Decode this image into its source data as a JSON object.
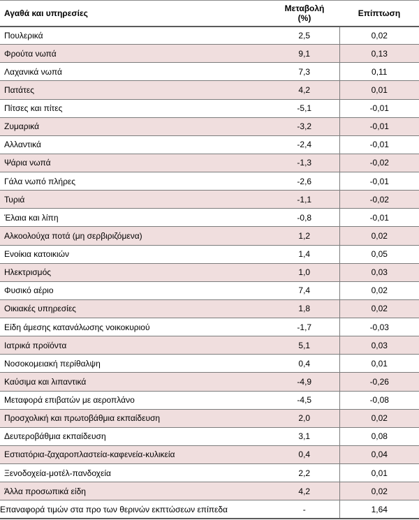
{
  "header": {
    "col1": "Αγαθά και υπηρεσίες",
    "col2_line1": "Μεταβολή",
    "col2_line2": "(%)",
    "col3": "Επίπτωση"
  },
  "rows": [
    {
      "label": "Πουλερικά",
      "change": "2,5",
      "impact": "0,02"
    },
    {
      "label": "Φρούτα νωπά",
      "change": "9,1",
      "impact": "0,13"
    },
    {
      "label": "Λαχανικά νωπά",
      "change": "7,3",
      "impact": "0,11"
    },
    {
      "label": "Πατάτες",
      "change": "4,2",
      "impact": "0,01"
    },
    {
      "label": "Πίτσες και πίτες",
      "change": "-5,1",
      "impact": "-0,01"
    },
    {
      "label": "Ζυμαρικά",
      "change": "-3,2",
      "impact": "-0,01"
    },
    {
      "label": "Αλλαντικά",
      "change": "-2,4",
      "impact": "-0,01"
    },
    {
      "label": "Ψάρια νωπά",
      "change": "-1,3",
      "impact": "-0,02"
    },
    {
      "label": "Γάλα νωπό πλήρες",
      "change": "-2,6",
      "impact": "-0,01"
    },
    {
      "label": "Τυριά",
      "change": "-1,1",
      "impact": "-0,02"
    },
    {
      "label": "Έλαια και λίπη",
      "change": "-0,8",
      "impact": "-0,01"
    },
    {
      "label": "Αλκοολούχα ποτά (μη σερβιριζόμενα)",
      "change": "1,2",
      "impact": "0,02"
    },
    {
      "label": "Ενοίκια κατοικιών",
      "change": "1,4",
      "impact": "0,05"
    },
    {
      "label": "Ηλεκτρισμός",
      "change": "1,0",
      "impact": "0,03"
    },
    {
      "label": "Φυσικό αέριο",
      "change": "7,4",
      "impact": "0,02"
    },
    {
      "label": "Οικιακές υπηρεσίες",
      "change": "1,8",
      "impact": "0,02"
    },
    {
      "label": "Είδη άμεσης κατανάλωσης νοικοκυριού",
      "change": "-1,7",
      "impact": "-0,03"
    },
    {
      "label": "Ιατρικά προϊόντα",
      "change": "5,1",
      "impact": "0,03"
    },
    {
      "label": "Νοσοκομειακή περίθαλψη",
      "change": "0,4",
      "impact": "0,01"
    },
    {
      "label": "Καύσιμα και λιπαντικά",
      "change": "-4,9",
      "impact": "-0,26"
    },
    {
      "label": "Μεταφορά επιβατών με αεροπλάνο",
      "change": "-4,5",
      "impact": "-0,08"
    },
    {
      "label": "Προσχολική και πρωτοβάθμια εκπαίδευση",
      "change": "2,0",
      "impact": "0,02"
    },
    {
      "label": "Δευτεροβάθμια εκπαίδευση",
      "change": "3,1",
      "impact": "0,08"
    },
    {
      "label": "Εστιατόρια-ζαχαροπλαστεία-καφενεία-κυλικεία",
      "change": "0,4",
      "impact": "0,04"
    },
    {
      "label": "Ξενοδοχεία-μοτέλ-πανδοχεία",
      "change": "2,2",
      "impact": "0,01"
    },
    {
      "label": "Άλλα προσωπικά είδη",
      "change": "4,2",
      "impact": "0,02"
    },
    {
      "label": "Επαναφορά τιμών στα προ των θερινών εκπτώσεων επίπεδα",
      "change": "-",
      "impact": "1,64"
    }
  ],
  "colors": {
    "row_shade": "#f0dede",
    "rule": "#7c7c7c"
  }
}
